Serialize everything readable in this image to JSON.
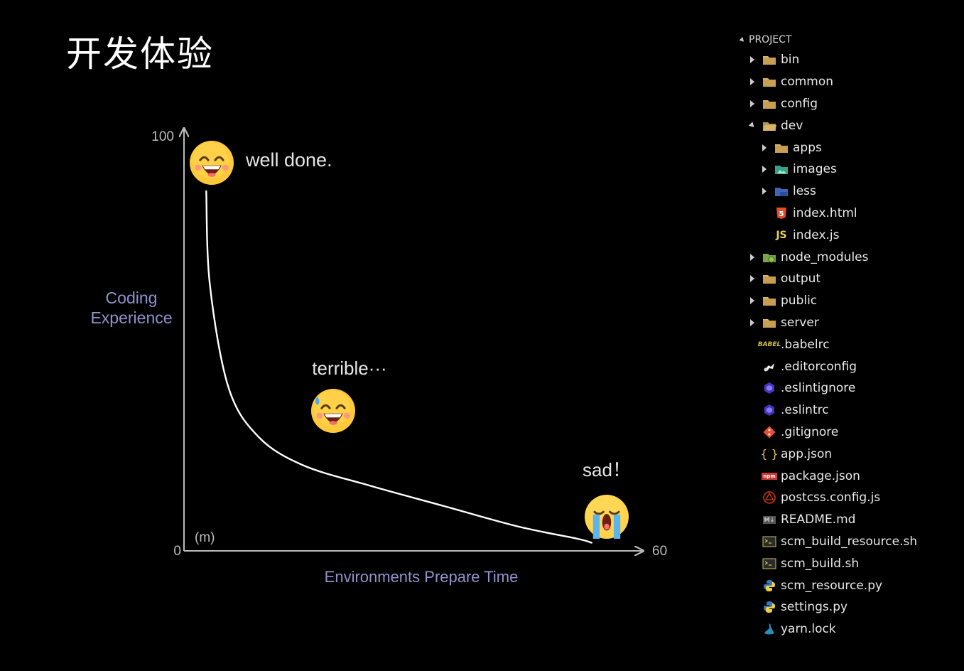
{
  "title": "开发体验",
  "chart_data": {
    "type": "line",
    "ylabel": [
      "Coding",
      "Experience"
    ],
    "xlabel": "Environments Prepare Time",
    "x_unit": "(m)",
    "xlim": [
      0,
      60
    ],
    "ylim": [
      0,
      100
    ],
    "x_ticks": [
      "0",
      "60"
    ],
    "y_ticks": [
      "100"
    ],
    "series": [
      {
        "x": [
          3,
          3.5,
          6,
          10,
          16,
          25,
          35,
          45,
          53,
          55
        ],
        "y": [
          88,
          65,
          40,
          28,
          21,
          16,
          11,
          6,
          3,
          2
        ]
      }
    ],
    "annotations": [
      {
        "text": "well done.",
        "emoji": "grinning-face-icon",
        "x": 4,
        "y": 94
      },
      {
        "text": "terrible···",
        "emoji": "grinning-sweat-face-icon",
        "x": 20,
        "y": 33
      },
      {
        "text": "sad！",
        "emoji": "loudly-crying-face-icon",
        "x": 56,
        "y": 8
      }
    ],
    "colors": {
      "axis": "#bbbbbb",
      "line": "#ffffff",
      "axis_label": "#8f93cc",
      "tick": "#bbbbbb"
    }
  },
  "explorer": {
    "header": "PROJECT",
    "items": [
      {
        "name": "bin",
        "depth": 0,
        "kind": "folder",
        "state": "collapsed",
        "icon": "folder-icon"
      },
      {
        "name": "common",
        "depth": 0,
        "kind": "folder",
        "state": "collapsed",
        "icon": "folder-icon"
      },
      {
        "name": "config",
        "depth": 0,
        "kind": "folder",
        "state": "collapsed",
        "icon": "folder-icon"
      },
      {
        "name": "dev",
        "depth": 0,
        "kind": "folder",
        "state": "expanded",
        "icon": "folder-open-icon"
      },
      {
        "name": "apps",
        "depth": 1,
        "kind": "folder",
        "state": "collapsed",
        "icon": "folder-icon"
      },
      {
        "name": "images",
        "depth": 1,
        "kind": "folder",
        "state": "collapsed",
        "icon": "folder-images-icon"
      },
      {
        "name": "less",
        "depth": 1,
        "kind": "folder",
        "state": "collapsed",
        "icon": "folder-less-icon"
      },
      {
        "name": "index.html",
        "depth": 1,
        "kind": "file",
        "icon": "html5-icon"
      },
      {
        "name": "index.js",
        "depth": 1,
        "kind": "file",
        "icon": "js-icon"
      },
      {
        "name": "node_modules",
        "depth": 0,
        "kind": "folder",
        "state": "collapsed",
        "icon": "folder-node-icon"
      },
      {
        "name": "output",
        "depth": 0,
        "kind": "folder",
        "state": "collapsed",
        "icon": "folder-icon"
      },
      {
        "name": "public",
        "depth": 0,
        "kind": "folder",
        "state": "collapsed",
        "icon": "folder-icon"
      },
      {
        "name": "server",
        "depth": 0,
        "kind": "folder",
        "state": "collapsed",
        "icon": "folder-icon"
      },
      {
        "name": ".babelrc",
        "depth": 0,
        "kind": "file",
        "icon": "babel-icon"
      },
      {
        "name": ".editorconfig",
        "depth": 0,
        "kind": "file",
        "icon": "editorconfig-icon"
      },
      {
        "name": ".eslintignore",
        "depth": 0,
        "kind": "file",
        "icon": "eslint-icon"
      },
      {
        "name": ".eslintrc",
        "depth": 0,
        "kind": "file",
        "icon": "eslint-icon"
      },
      {
        "name": ".gitignore",
        "depth": 0,
        "kind": "file",
        "icon": "git-icon"
      },
      {
        "name": "app.json",
        "depth": 0,
        "kind": "file",
        "icon": "json-icon"
      },
      {
        "name": "package.json",
        "depth": 0,
        "kind": "file",
        "icon": "npm-icon"
      },
      {
        "name": "postcss.config.js",
        "depth": 0,
        "kind": "file",
        "icon": "postcss-icon"
      },
      {
        "name": "README.md",
        "depth": 0,
        "kind": "file",
        "icon": "markdown-icon"
      },
      {
        "name": "scm_build_resource.sh",
        "depth": 0,
        "kind": "file",
        "icon": "shell-icon"
      },
      {
        "name": "scm_build.sh",
        "depth": 0,
        "kind": "file",
        "icon": "shell-icon"
      },
      {
        "name": "scm_resource.py",
        "depth": 0,
        "kind": "file",
        "icon": "python-icon"
      },
      {
        "name": "settings.py",
        "depth": 0,
        "kind": "file",
        "icon": "python-icon"
      },
      {
        "name": "yarn.lock",
        "depth": 0,
        "kind": "file",
        "icon": "yarn-icon"
      }
    ]
  }
}
